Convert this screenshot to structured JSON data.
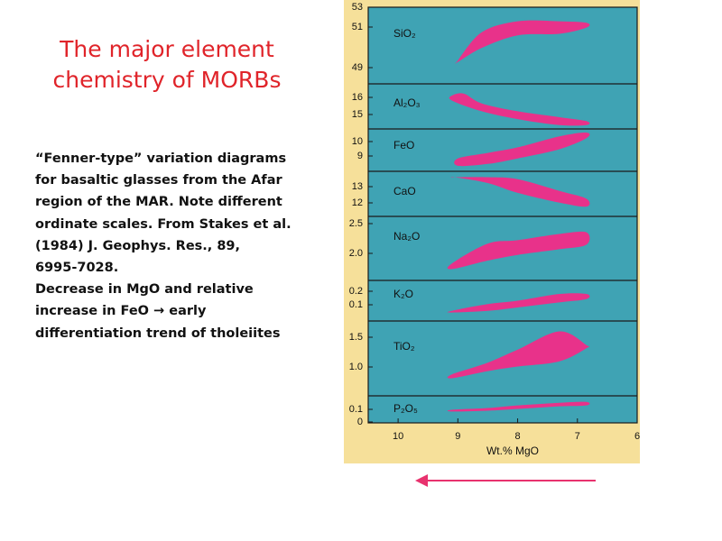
{
  "slide": {
    "title_line1": "The major element",
    "title_line2": "chemistry of MORBs"
  },
  "caption": {
    "lines": [
      "“Fenner-type” variation diagrams",
      "for basaltic glasses from the Afar",
      "region of the MAR. Note different",
      "ordinate scales. From Stakes et al.",
      "(1984) J. Geophys. Res., 89,",
      "6995-7028.",
      "Decrease in MgO and relative",
      "increase in FeO → early",
      "differentiation trend of tholeiites"
    ]
  },
  "colors": {
    "title": "#e0242a",
    "frame": "#f6e09a",
    "plot_bg": "#3fa3b4",
    "field": "#e8328a",
    "arrow": "#e8326e"
  },
  "arrow": {
    "direction": "left"
  },
  "chart_data": {
    "type": "area",
    "xlabel": "Wt.% MgO",
    "x_ticks": [
      "10",
      "9",
      "8",
      "7",
      "6"
    ],
    "xlim": [
      10.5,
      6
    ],
    "x_reversed": true,
    "panels": [
      {
        "oxide": "SiO₂",
        "y_ticks": [
          "53",
          "51",
          "49"
        ],
        "ylim": [
          48.3,
          53.2
        ],
        "upper": [
          [
            9.0,
            49.8
          ],
          [
            8.6,
            51.6
          ],
          [
            8.0,
            52.3
          ],
          [
            7.3,
            52.3
          ],
          [
            6.85,
            52.2
          ]
        ],
        "lower": [
          [
            9.0,
            49.7
          ],
          [
            8.6,
            50.6
          ],
          [
            8.0,
            51.4
          ],
          [
            7.3,
            51.5
          ],
          [
            6.85,
            51.9
          ]
        ]
      },
      {
        "oxide": "Al₂O₃",
        "y_ticks": [
          "16",
          "15"
        ],
        "ylim": [
          14.4,
          16.7
        ],
        "upper": [
          [
            9.1,
            16.1
          ],
          [
            8.9,
            16.2
          ],
          [
            8.6,
            15.7
          ],
          [
            8.0,
            15.3
          ],
          [
            7.3,
            15.0
          ],
          [
            6.85,
            14.8
          ]
        ],
        "lower": [
          [
            9.1,
            15.85
          ],
          [
            8.6,
            15.3
          ],
          [
            8.0,
            14.9
          ],
          [
            7.3,
            14.6
          ],
          [
            6.85,
            14.6
          ]
        ]
      },
      {
        "oxide": "FeO",
        "y_ticks": [
          "10",
          "9"
        ],
        "ylim": [
          8.2,
          10.5
        ],
        "upper": [
          [
            9.0,
            8.9
          ],
          [
            8.5,
            9.2
          ],
          [
            8.0,
            9.5
          ],
          [
            7.3,
            10.1
          ],
          [
            6.85,
            10.3
          ]
        ],
        "lower": [
          [
            9.0,
            8.5
          ],
          [
            8.5,
            8.6
          ],
          [
            8.0,
            8.9
          ],
          [
            7.3,
            9.4
          ],
          [
            6.85,
            10.0
          ]
        ]
      },
      {
        "oxide": "CaO",
        "y_ticks": [
          "13",
          "12"
        ],
        "ylim": [
          11.4,
          13.7
        ],
        "upper": [
          [
            9.05,
            13.4
          ],
          [
            8.5,
            13.4
          ],
          [
            8.0,
            13.3
          ],
          [
            7.3,
            12.7
          ],
          [
            6.85,
            12.3
          ]
        ],
        "lower": [
          [
            9.05,
            13.4
          ],
          [
            8.5,
            13.1
          ],
          [
            8.0,
            12.6
          ],
          [
            7.3,
            12.1
          ],
          [
            6.85,
            11.9
          ]
        ]
      },
      {
        "oxide": "Na₂O",
        "y_ticks": [
          "2.5",
          "2.0"
        ],
        "ylim": [
          1.65,
          2.78
        ],
        "upper": [
          [
            9.1,
            1.95
          ],
          [
            8.5,
            2.3
          ],
          [
            8.0,
            2.36
          ],
          [
            7.3,
            2.47
          ],
          [
            6.85,
            2.5
          ]
        ],
        "lower": [
          [
            9.1,
            1.85
          ],
          [
            8.5,
            2.0
          ],
          [
            8.0,
            2.1
          ],
          [
            7.3,
            2.2
          ],
          [
            6.85,
            2.28
          ]
        ]
      },
      {
        "oxide": "K₂O",
        "y_ticks": [
          "0.2",
          "0.1"
        ],
        "ylim": [
          0.04,
          0.28
        ],
        "upper": [
          [
            9.1,
            0.1
          ],
          [
            8.5,
            0.14
          ],
          [
            8.0,
            0.16
          ],
          [
            7.3,
            0.2
          ],
          [
            6.85,
            0.2
          ]
        ],
        "lower": [
          [
            9.1,
            0.09
          ],
          [
            8.5,
            0.1
          ],
          [
            8.0,
            0.12
          ],
          [
            7.3,
            0.15
          ],
          [
            6.85,
            0.17
          ]
        ]
      },
      {
        "oxide": "TiO₂",
        "y_ticks": [
          "1.5",
          "1.0"
        ],
        "ylim": [
          0.57,
          1.72
        ],
        "upper": [
          [
            9.1,
            0.9
          ],
          [
            8.5,
            1.08
          ],
          [
            8.0,
            1.28
          ],
          [
            7.3,
            1.56
          ],
          [
            6.85,
            1.35
          ]
        ],
        "lower": [
          [
            9.1,
            0.84
          ],
          [
            8.5,
            0.95
          ],
          [
            8.0,
            1.02
          ],
          [
            7.3,
            1.1
          ],
          [
            6.85,
            1.3
          ]
        ]
      },
      {
        "oxide": "P₂O₅",
        "y_ticks": [
          "0.1",
          "0"
        ],
        "ylim": [
          -0.01,
          0.145
        ],
        "upper": [
          [
            9.1,
            0.065
          ],
          [
            8.5,
            0.075
          ],
          [
            8.0,
            0.09
          ],
          [
            7.3,
            0.105
          ],
          [
            6.85,
            0.11
          ]
        ],
        "lower": [
          [
            9.1,
            0.055
          ],
          [
            8.5,
            0.06
          ],
          [
            8.0,
            0.07
          ],
          [
            7.3,
            0.085
          ],
          [
            6.85,
            0.09
          ]
        ]
      }
    ]
  }
}
